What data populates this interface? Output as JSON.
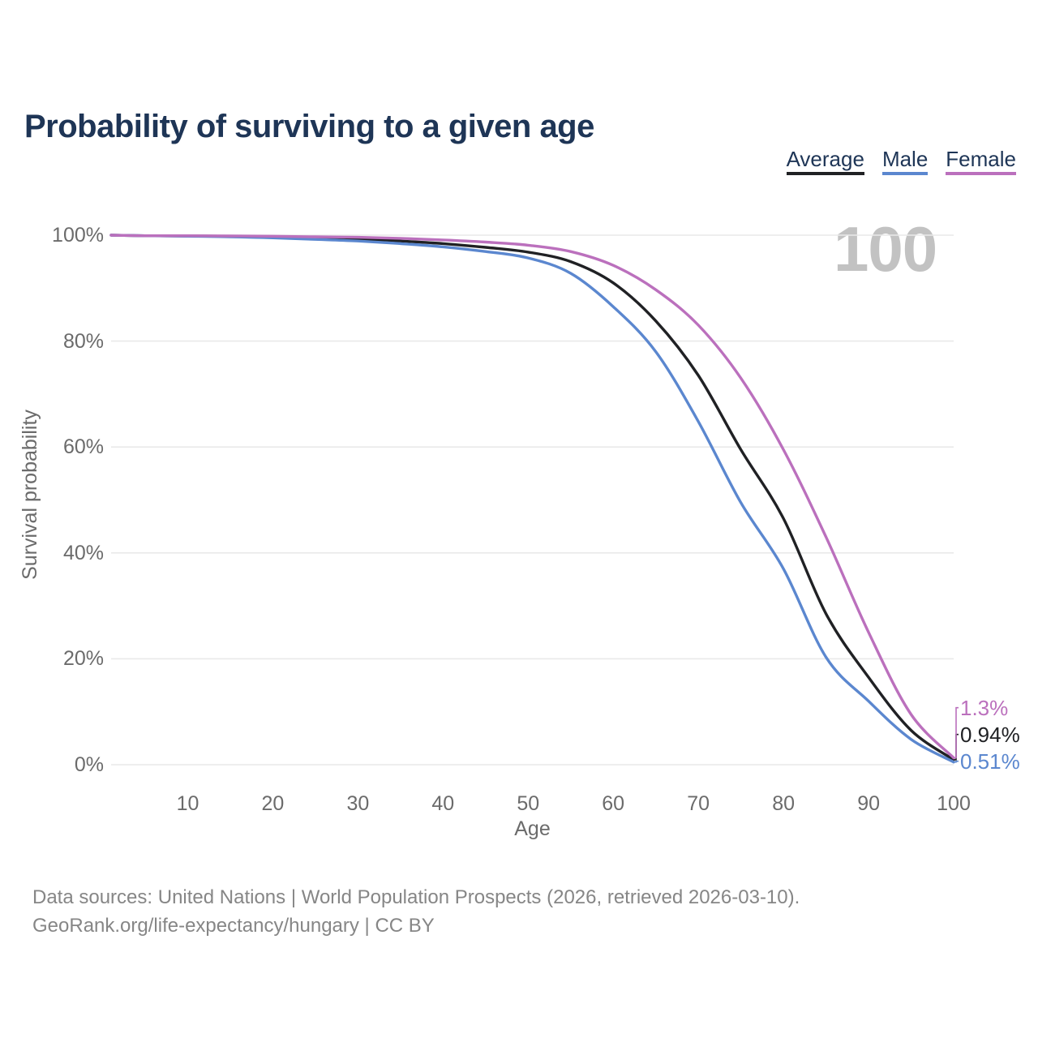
{
  "title": "Probability of surviving to a given age",
  "watermark": {
    "text": "100"
  },
  "chart_data": {
    "type": "line",
    "title": "Probability of surviving to a given age",
    "xlabel": "Age",
    "ylabel": "Survival probability",
    "xlim": [
      1,
      100
    ],
    "ylim": [
      0,
      100
    ],
    "grid": "horizontal-only",
    "legend_position": "top-right",
    "x_ticks": [
      10,
      20,
      30,
      40,
      50,
      60,
      70,
      80,
      90,
      100
    ],
    "y_ticks": [
      {
        "value": 100,
        "label": "100%"
      },
      {
        "value": 80,
        "label": "80%"
      },
      {
        "value": 60,
        "label": "60%"
      },
      {
        "value": 40,
        "label": "40%"
      },
      {
        "value": 20,
        "label": "20%"
      },
      {
        "value": 0,
        "label": "0%"
      }
    ],
    "x": [
      1,
      5,
      10,
      15,
      20,
      25,
      30,
      35,
      40,
      45,
      50,
      55,
      60,
      65,
      70,
      75,
      80,
      85,
      90,
      95,
      100
    ],
    "series": [
      {
        "name": "Average",
        "color": "#202124",
        "end_label": "0.94%",
        "values": [
          100,
          99.9,
          99.85,
          99.8,
          99.7,
          99.5,
          99.3,
          98.9,
          98.4,
          97.7,
          96.8,
          95.0,
          91.0,
          83.8,
          73.5,
          59.5,
          46.5,
          28.5,
          16.5,
          6.5,
          0.94
        ]
      },
      {
        "name": "Male",
        "color": "#5b87cf",
        "end_label": "0.51%",
        "values": [
          100,
          99.9,
          99.8,
          99.7,
          99.5,
          99.2,
          98.9,
          98.4,
          97.8,
          96.9,
          95.7,
          92.8,
          86.5,
          78.0,
          64.8,
          49.5,
          37.0,
          20.3,
          12.0,
          4.8,
          0.51
        ]
      },
      {
        "name": "Female",
        "color": "#bb70bd",
        "end_label": "1.3%",
        "values": [
          100,
          99.9,
          99.9,
          99.85,
          99.8,
          99.7,
          99.6,
          99.4,
          99.1,
          98.7,
          98.1,
          96.9,
          94.3,
          89.7,
          83.0,
          73.0,
          59.5,
          43.0,
          25.0,
          9.5,
          1.3
        ]
      }
    ]
  },
  "footer": {
    "line1": "Data sources: United Nations | World Population Prospects (2026, retrieved 2026-03-10).",
    "line2": "GeoRank.org/life-expectancy/hungary | CC BY"
  }
}
